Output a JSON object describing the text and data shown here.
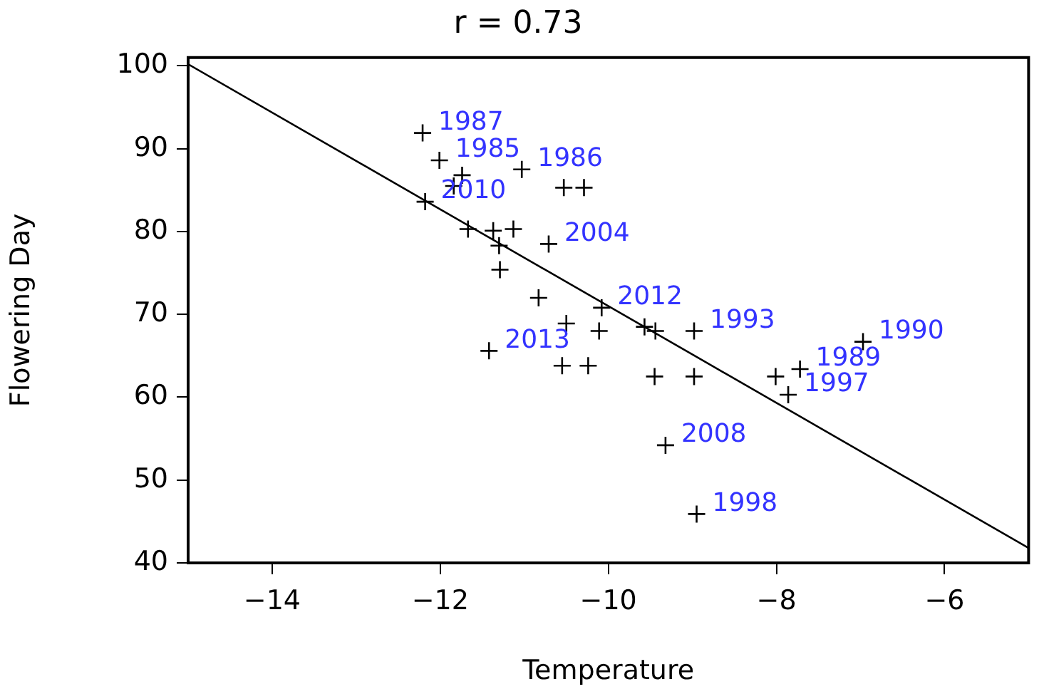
{
  "chart_data": {
    "type": "scatter",
    "title": "r = 0.73",
    "xlabel": "Temperature",
    "ylabel": "Flowering Day",
    "xlim": [
      -15,
      -5
    ],
    "xticks": [
      -14,
      -12,
      -10,
      -8,
      -6
    ],
    "ylim": [
      40,
      101
    ],
    "yticks": [
      40,
      50,
      60,
      70,
      80,
      90,
      100
    ],
    "grid": false,
    "legend": false,
    "series": [
      {
        "color": "#000000",
        "marker": "cross",
        "x": [
          -12.21,
          -12.01,
          -11.74,
          -11.03,
          -11.84,
          -10.53,
          -10.29,
          -12.18,
          -11.67,
          -11.37,
          -11.13,
          -11.3,
          -10.71,
          -11.29,
          -10.83,
          -10.08,
          -10.5,
          -10.11,
          -9.57,
          -9.44,
          -8.98,
          -11.42,
          -10.55,
          -10.24,
          -9.45,
          -8.98,
          -6.97,
          -8.01,
          -7.72,
          -7.86,
          -9.32,
          -8.95
        ],
        "values": [
          91.9,
          88.6,
          86.8,
          87.5,
          85.5,
          85.3,
          85.3,
          83.6,
          80.3,
          80.1,
          80.3,
          78.3,
          78.5,
          75.4,
          72.0,
          70.8,
          68.9,
          68.0,
          68.5,
          68.0,
          68.0,
          65.6,
          63.8,
          63.8,
          62.5,
          62.5,
          66.7,
          62.5,
          63.4,
          60.3,
          54.2,
          45.9
        ]
      },
      {
        "type": "line",
        "color": "#000000",
        "marker": "none",
        "line_style": "solid",
        "x": [
          -15,
          -5
        ],
        "values": [
          100.2,
          41.8
        ]
      }
    ],
    "annotations": [
      {
        "text": "1987",
        "x": -12.21,
        "y": 91.9
      },
      {
        "text": "1985",
        "x": -12.01,
        "y": 88.6
      },
      {
        "text": "1986",
        "x": -11.03,
        "y": 87.5
      },
      {
        "text": "2010",
        "x": -12.18,
        "y": 83.6
      },
      {
        "text": "2004",
        "x": -10.71,
        "y": 78.5
      },
      {
        "text": "2012",
        "x": -10.08,
        "y": 70.8
      },
      {
        "text": "1993",
        "x": -8.98,
        "y": 68.0
      },
      {
        "text": "2013",
        "x": -11.42,
        "y": 65.6
      },
      {
        "text": "1990",
        "x": -6.97,
        "y": 66.7
      },
      {
        "text": "1989",
        "x": -7.72,
        "y": 63.4
      },
      {
        "text": "1997",
        "x": -7.86,
        "y": 60.3
      },
      {
        "text": "2008",
        "x": -9.32,
        "y": 54.2
      },
      {
        "text": "1998",
        "x": -8.95,
        "y": 45.9
      }
    ]
  }
}
